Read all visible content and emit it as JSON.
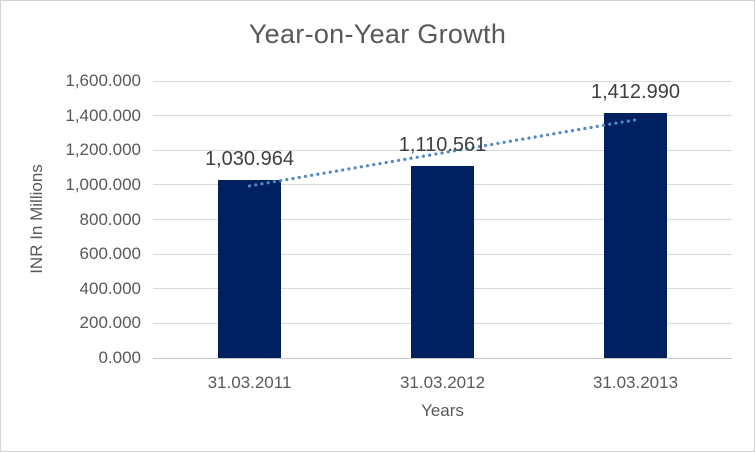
{
  "chart_data": {
    "type": "bar",
    "title": "Year-on-Year Growth",
    "xlabel": "Years",
    "ylabel": "INR In Millions",
    "categories": [
      "31.03.2011",
      "31.03.2012",
      "31.03.2013"
    ],
    "values": [
      1030.964,
      1110.561,
      1412.99
    ],
    "data_labels": [
      "1,030.964",
      "1,110.561",
      "1,412.990"
    ],
    "ylim": [
      0,
      1600
    ],
    "y_ticks": [
      {
        "value": 0,
        "label": "0.000"
      },
      {
        "value": 200,
        "label": "200.000"
      },
      {
        "value": 400,
        "label": "400.000"
      },
      {
        "value": 600,
        "label": "600.000"
      },
      {
        "value": 800,
        "label": "800.000"
      },
      {
        "value": 1000,
        "label": "1,000.000"
      },
      {
        "value": 1200,
        "label": "1,200.000"
      },
      {
        "value": 1400,
        "label": "1,400.000"
      },
      {
        "value": 1600,
        "label": "1,600.000"
      }
    ],
    "grid": true,
    "legend": "none",
    "trendline": {
      "type": "linear",
      "style": "dotted",
      "color": "#4f87c7"
    },
    "colors": {
      "bar": "#002060",
      "trendline": "#4f87c7",
      "gridline": "#d9d9d9",
      "axis_text": "#595959",
      "data_label": "#3f3f3f",
      "title_text": "#595959",
      "frame_border": "#d3d3d3",
      "background": "#ffffff"
    }
  }
}
